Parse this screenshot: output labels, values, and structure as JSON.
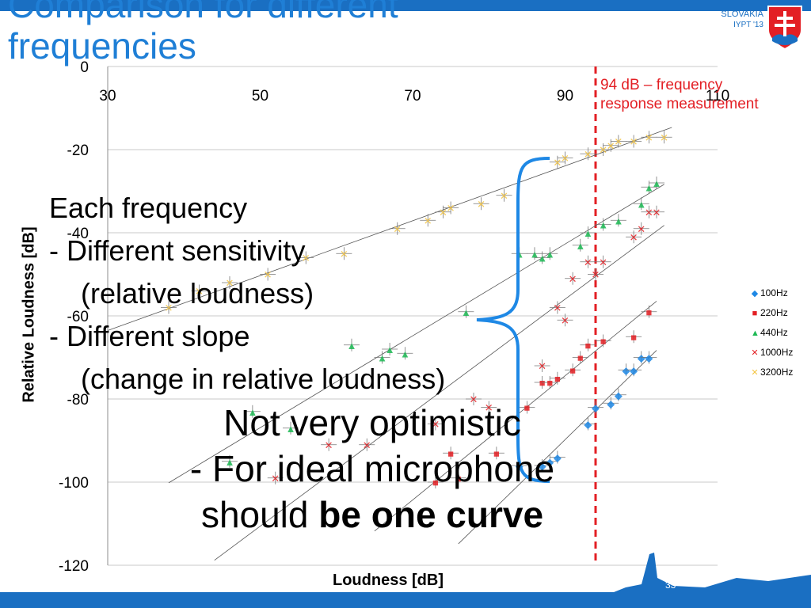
{
  "slide": {
    "title": "Comparison for different frequencies",
    "brand": "SLOVAKIA",
    "event": "IYPT '13",
    "page_number": "33",
    "annotation": "94 dB – frequency response measurement",
    "bullets": [
      "Each frequency",
      "- Different sensitivity",
      "(relative loudness)",
      "- Different slope",
      "(change in relative loudness)"
    ],
    "conclusion_line1": "Not very optimistic",
    "conclusion_line2": "- For ideal microphone",
    "conclusion_line3_plain": "should ",
    "conclusion_line3_bold": "be one curve",
    "colors": {
      "accent": "#1a6fc2",
      "title": "#1f7fd6",
      "annotation": "#e31f24",
      "brace": "#1e88e5"
    }
  },
  "chart_data": {
    "type": "scatter",
    "xlabel": "Loudness [dB]",
    "ylabel": "Relative Loudness [dB]",
    "xlim": [
      30,
      110
    ],
    "ylim": [
      -120,
      0
    ],
    "x_ticks": [
      "30",
      "50",
      "70",
      "90",
      "110"
    ],
    "y_ticks": [
      "0",
      "-20",
      "-40",
      "-60",
      "-80",
      "-100",
      "-120"
    ],
    "grid": true,
    "legend_position": "right",
    "reference_line_x": 94,
    "series": [
      {
        "name": "100Hz",
        "color": "#1e88e5",
        "marker": "◆",
        "x": [
          84,
          87,
          88,
          89,
          93,
          94,
          96,
          97,
          98,
          99,
          100,
          101
        ],
        "y": [
          -96,
          -96,
          -95,
          -94,
          -86,
          -82,
          -81,
          -79,
          -73,
          -73,
          -70,
          -70
        ]
      },
      {
        "name": "220Hz",
        "color": "#e31f24",
        "marker": "■",
        "x": [
          73,
          75,
          76,
          81,
          85,
          87,
          88,
          89,
          91,
          92,
          93,
          95,
          99,
          101
        ],
        "y": [
          -100,
          -93,
          -99,
          -93,
          -82,
          -76,
          -76,
          -75,
          -73,
          -70,
          -67,
          -66,
          -65,
          -59
        ]
      },
      {
        "name": "440Hz",
        "color": "#1db954",
        "marker": "▲",
        "x": [
          46,
          49,
          54,
          62,
          66,
          67,
          69,
          77,
          84,
          86,
          87,
          88,
          92,
          93,
          95,
          97,
          100,
          101,
          102
        ],
        "y": [
          -95,
          -83,
          -87,
          -67,
          -70,
          -68,
          -69,
          -59,
          -45,
          -45,
          -46,
          -45,
          -43,
          -40,
          -38,
          -37,
          -33,
          -29,
          -28
        ]
      },
      {
        "name": "1000Hz",
        "color": "#e31f24",
        "marker": "✕",
        "x": [
          52,
          59,
          64,
          73,
          78,
          80,
          87,
          89,
          90,
          91,
          93,
          94,
          95,
          99,
          100,
          101,
          102
        ],
        "y": [
          -99,
          -91,
          -91,
          -86,
          -80,
          -82,
          -72,
          -58,
          -61,
          -51,
          -47,
          -50,
          -47,
          -41,
          -39,
          -35,
          -35
        ]
      },
      {
        "name": "3200Hz",
        "color": "#f4c542",
        "marker": "✕",
        "x": [
          38,
          42,
          46,
          51,
          56,
          61,
          68,
          72,
          74,
          75,
          79,
          82,
          89,
          90,
          93,
          95,
          96,
          97,
          99,
          101,
          103
        ],
        "y": [
          -58,
          -54,
          -52,
          -50,
          -46,
          -45,
          -39,
          -37,
          -35,
          -34,
          -33,
          -31,
          -23,
          -22,
          -21,
          -20,
          -19,
          -18,
          -18,
          -17,
          -17
        ]
      }
    ]
  }
}
